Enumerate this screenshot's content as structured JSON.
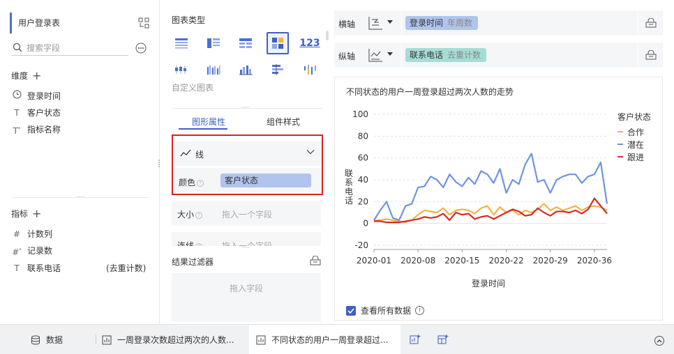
{
  "left": {
    "table_title": "用户登录表",
    "search_placeholder": "搜索字段",
    "dimensions_label": "维度",
    "dimensions": [
      {
        "label": "登录时间",
        "icon": "clock-icon"
      },
      {
        "label": "客户状态",
        "icon": "text-type-icon"
      },
      {
        "label": "指标名称",
        "icon": "text-star-type-icon"
      }
    ],
    "measures_label": "指标",
    "measures": [
      {
        "label": "计数列",
        "icon": "hash-icon",
        "extra": ""
      },
      {
        "label": "记录数",
        "icon": "hash-star-icon",
        "extra": ""
      },
      {
        "label": "联系电话",
        "icon": "text-type-icon",
        "extra": "(去重计数)"
      }
    ]
  },
  "mid": {
    "chart_type_label": "图表类型",
    "custom_chart_label": "自定义图表",
    "number_card_label": "123",
    "tabs": [
      "图形属性",
      "组件样式"
    ],
    "line_label": "线",
    "color_label": "颜色",
    "color_field": "客户状态",
    "size_label": "大小",
    "size_placeholder": "拖入一个字段",
    "connect_label": "连线",
    "connect_placeholder": "拖入一个字段",
    "filter_title": "结果过滤器",
    "filter_placeholder": "拖入字段"
  },
  "right": {
    "x_axis_label": "横轴",
    "x_axis_field": "登录时间",
    "x_axis_field_sub": "年周数",
    "y_axis_label": "纵轴",
    "y_axis_field": "联系电话",
    "y_axis_field_sub": "去重计数",
    "view_all_label": "查看所有数据"
  },
  "colors": {
    "accent": "#3d5fc7",
    "cooperate": "#f2b440",
    "potential": "#6f93e3",
    "followup": "#d42a2a",
    "highlight_border": "#e02020"
  },
  "chart_data": {
    "type": "line",
    "title": "不同状态的用户一周登录超过两次人数的走势",
    "xlabel": "登录时间",
    "ylabel": "联系电话",
    "legend_title": "客户状态",
    "legend_position": "right",
    "ylim": [
      -10,
      100
    ],
    "yticks": [
      -20,
      0,
      20,
      40,
      60,
      80,
      100
    ],
    "xtick_labels": [
      "2020-01",
      "2020-08",
      "2020-15",
      "2020-22",
      "2020-29",
      "2020-36"
    ],
    "xticks": [
      1,
      8,
      15,
      22,
      29,
      36
    ],
    "x": [
      1,
      2,
      3,
      4,
      5,
      6,
      7,
      8,
      9,
      10,
      11,
      12,
      13,
      14,
      15,
      16,
      17,
      18,
      19,
      20,
      21,
      22,
      23,
      24,
      25,
      26,
      27,
      28,
      29,
      30,
      31,
      32,
      33,
      34,
      35,
      36,
      37,
      38
    ],
    "series": [
      {
        "name": "合作",
        "values": [
          3,
          3,
          4,
          3,
          2,
          1,
          3,
          8,
          12,
          11,
          10,
          14,
          8,
          12,
          13,
          12,
          9,
          14,
          16,
          8,
          15,
          10,
          12,
          8,
          12,
          10,
          13,
          18,
          12,
          15,
          12,
          14,
          16,
          12,
          15,
          16,
          15,
          12
        ]
      },
      {
        "name": "潜在",
        "values": [
          3,
          12,
          20,
          5,
          3,
          16,
          18,
          33,
          34,
          43,
          40,
          33,
          45,
          38,
          34,
          42,
          36,
          48,
          45,
          37,
          50,
          28,
          40,
          36,
          54,
          64,
          38,
          40,
          28,
          40,
          43,
          45,
          45,
          37,
          43,
          45,
          56,
          18
        ]
      },
      {
        "name": "跟进",
        "values": [
          2,
          2,
          1,
          1,
          1,
          2,
          3,
          4,
          6,
          5,
          6,
          9,
          3,
          10,
          8,
          9,
          4,
          6,
          7,
          4,
          7,
          10,
          13,
          11,
          7,
          8,
          14,
          10,
          7,
          11,
          11,
          10,
          12,
          9,
          13,
          23,
          16,
          9
        ]
      }
    ]
  }
}
